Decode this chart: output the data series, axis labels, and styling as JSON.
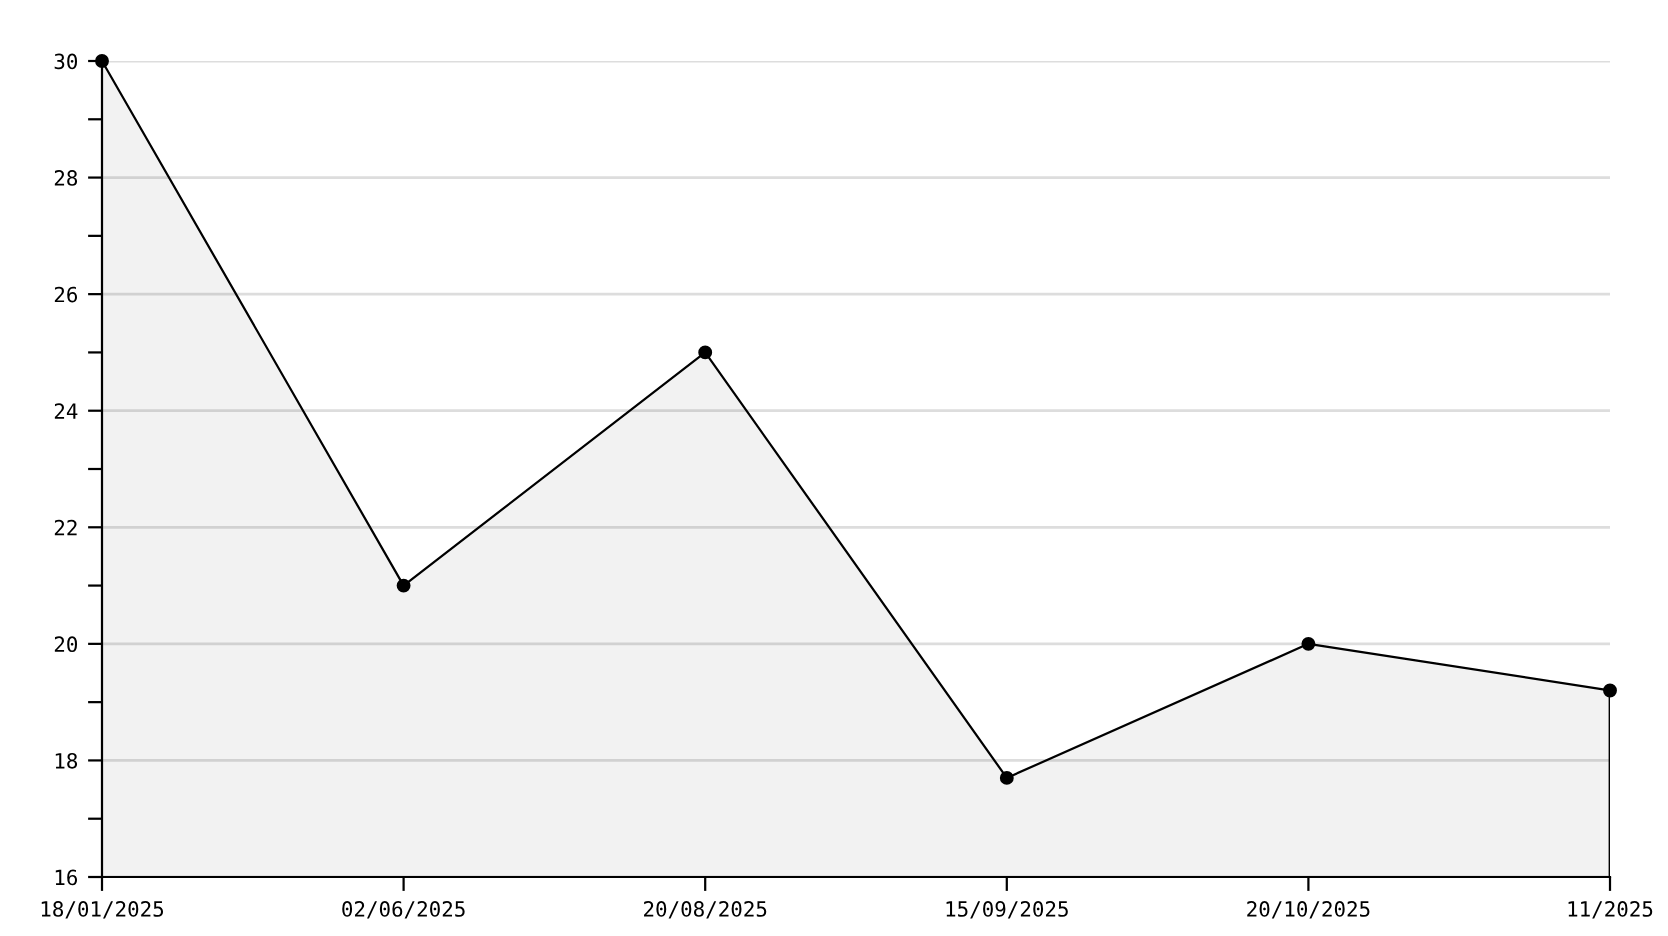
{
  "chart_data": {
    "type": "area",
    "categories": [
      "18/01/2025",
      "02/06/2025",
      "20/08/2025",
      "15/09/2025",
      "20/10/2025",
      "11/2025"
    ],
    "series": [
      {
        "color": "#000000",
        "values": [
          30,
          21,
          25,
          17.7,
          20,
          19.2
        ]
      }
    ],
    "ylim": [
      16,
      30
    ],
    "yticks": [
      16,
      {
        "value": 17,
        "label": null
      },
      18,
      {
        "value": 19,
        "label": null
      },
      20,
      {
        "value": 21,
        "label": null
      },
      22,
      {
        "value": 23,
        "label": null
      },
      24,
      {
        "value": 25,
        "label": null
      },
      26,
      {
        "value": 27,
        "label": null
      },
      28,
      {
        "value": 29,
        "label": null
      },
      30
    ],
    "grid": "y",
    "marker": "circle",
    "line_style": "solid"
  }
}
